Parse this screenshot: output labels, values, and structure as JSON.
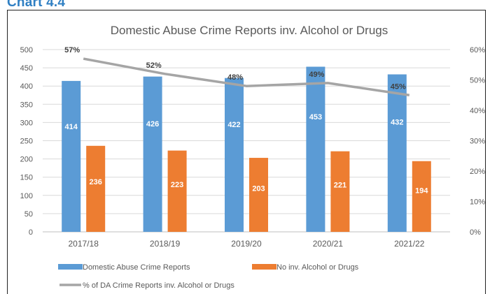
{
  "page": {
    "heading": "Chart 4.4"
  },
  "chart_data": {
    "type": "bar",
    "title": "Domestic Abuse Crime Reports inv.  Alcohol or Drugs",
    "categories": [
      "2017/18",
      "2018/19",
      "2019/20",
      "2020/21",
      "2021/22"
    ],
    "series": [
      {
        "name": "Domestic Abuse Crime Reports",
        "type": "bar",
        "axis": "left",
        "color": "#5b9bd5",
        "values": [
          414,
          426,
          422,
          453,
          432
        ]
      },
      {
        "name": "No inv. Alcohol or Drugs",
        "type": "bar",
        "axis": "left",
        "color": "#ed7d31",
        "values": [
          236,
          223,
          203,
          221,
          194
        ]
      },
      {
        "name": "% of DA Crime Reports inv. Alcohol or Drugs",
        "type": "line",
        "axis": "right",
        "color": "#a5a5a5",
        "values": [
          0.57,
          0.52,
          0.48,
          0.49,
          0.45
        ],
        "labels": [
          "57%",
          "52%",
          "48%",
          "49%",
          "45%"
        ]
      }
    ],
    "y_left": {
      "ylim": [
        0,
        500
      ],
      "ticks": [
        0,
        50,
        100,
        150,
        200,
        250,
        300,
        350,
        400,
        450,
        500
      ],
      "tick_labels": [
        "0",
        "50",
        "100",
        "150",
        "200",
        "250",
        "300",
        "350",
        "400",
        "450",
        "500"
      ]
    },
    "y_right": {
      "ylim": [
        0,
        0.6
      ],
      "ticks": [
        0,
        0.1,
        0.2,
        0.3,
        0.4,
        0.5,
        0.6
      ],
      "tick_labels": [
        "0%",
        "10%",
        "20%",
        "30%",
        "40%",
        "50%",
        "60%"
      ]
    },
    "grid": true,
    "legend_position": "bottom"
  }
}
